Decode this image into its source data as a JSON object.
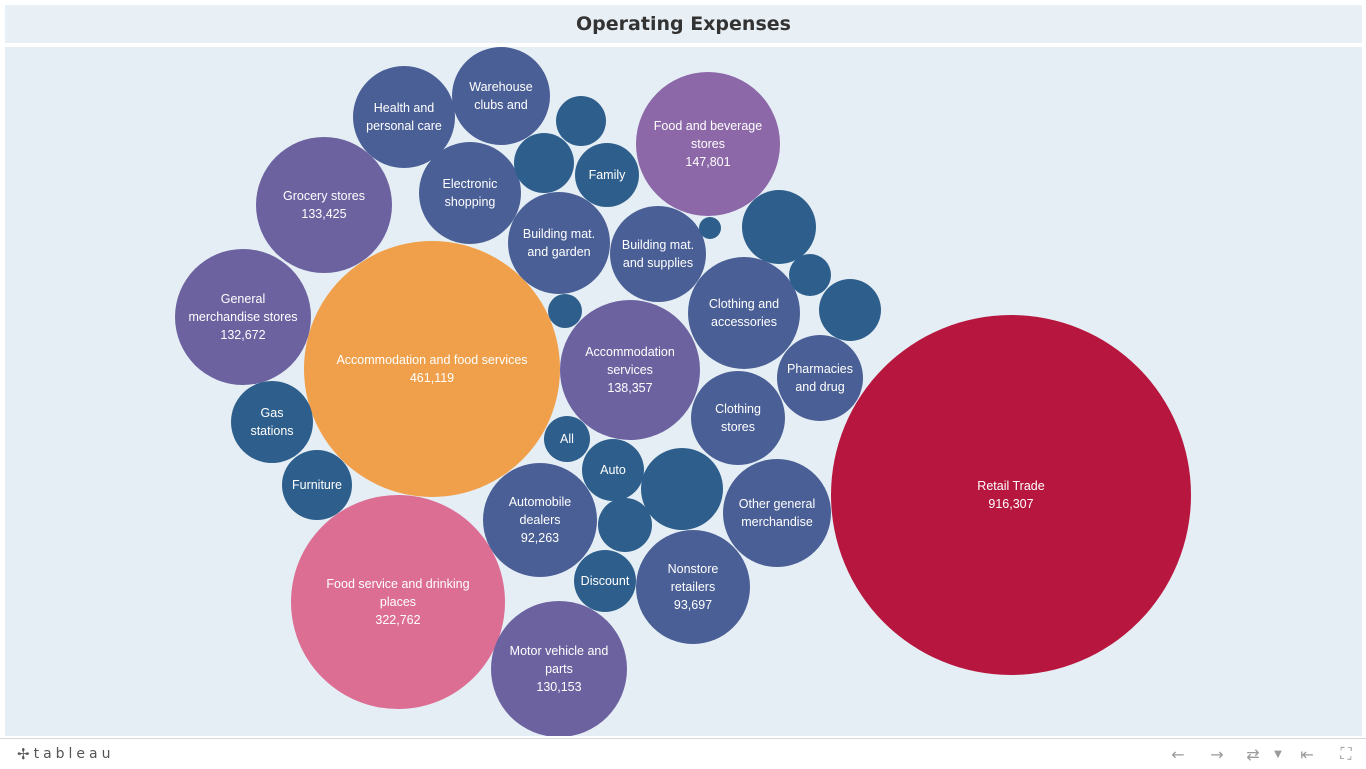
{
  "title": "Operating Expenses",
  "colors": {
    "blue_dark": "#2e5f8c",
    "blue_slate": "#4a5f96",
    "purple": "#6c62a0",
    "purple_light": "#8c68a8",
    "orange": "#f0a04a",
    "pink": "#dc6e94",
    "crimson": "#b7173f",
    "background": "#e6eef5"
  },
  "chart_data": {
    "type": "bubble",
    "title": "Operating Expenses",
    "value_format": "thousands separator",
    "bubbles": [
      {
        "label": [
          "Retail Trade"
        ],
        "value": 916307,
        "value_label": "916,307",
        "color": "crimson"
      },
      {
        "label": [
          "Accommodation and food services"
        ],
        "value": 461119,
        "value_label": "461,119",
        "color": "orange"
      },
      {
        "label": [
          "Food service and drinking",
          "places"
        ],
        "value": 322762,
        "value_label": "322,762",
        "color": "pink"
      },
      {
        "label": [
          "Food and beverage",
          "stores"
        ],
        "value": 147801,
        "value_label": "147,801",
        "color": "purple_light"
      },
      {
        "label": [
          "Accommodation",
          "services"
        ],
        "value": 138357,
        "value_label": "138,357",
        "color": "purple"
      },
      {
        "label": [
          "Grocery stores"
        ],
        "value": 133425,
        "value_label": "133,425",
        "color": "purple"
      },
      {
        "label": [
          "General",
          "merchandise stores"
        ],
        "value": 132672,
        "value_label": "132,672",
        "color": "purple"
      },
      {
        "label": [
          "Motor vehicle and",
          "parts"
        ],
        "value": 130153,
        "value_label": "130,153",
        "color": "purple"
      },
      {
        "label": [
          "Nonstore",
          "retailers"
        ],
        "value": 93697,
        "value_label": "93,697",
        "color": "blue_slate"
      },
      {
        "label": [
          "Automobile",
          "dealers"
        ],
        "value": 92263,
        "value_label": "92,263",
        "color": "blue_slate"
      },
      {
        "label": [
          "Other general",
          "merchandise"
        ],
        "value": null,
        "value_label": "",
        "color": "blue_slate"
      },
      {
        "label": [
          "Clothing and",
          "accessories"
        ],
        "value": null,
        "value_label": "",
        "color": "blue_slate"
      },
      {
        "label": [
          "Building mat.",
          "and garden"
        ],
        "value": null,
        "value_label": "",
        "color": "blue_slate"
      },
      {
        "label": [
          "Building mat.",
          "and supplies"
        ],
        "value": null,
        "value_label": "",
        "color": "blue_slate"
      },
      {
        "label": [
          "Health and",
          "personal care"
        ],
        "value": null,
        "value_label": "",
        "color": "blue_slate"
      },
      {
        "label": [
          "Electronic",
          "shopping"
        ],
        "value": null,
        "value_label": "",
        "color": "blue_slate"
      },
      {
        "label": [
          "Warehouse",
          "clubs and"
        ],
        "value": null,
        "value_label": "",
        "color": "blue_slate"
      },
      {
        "label": [
          "Clothing",
          "stores"
        ],
        "value": null,
        "value_label": "",
        "color": "blue_slate"
      },
      {
        "label": [
          "Pharmacies",
          "and drug"
        ],
        "value": null,
        "value_label": "",
        "color": "blue_slate"
      },
      {
        "label": [
          "Gas",
          "stations"
        ],
        "value": null,
        "value_label": "",
        "color": "blue_dark"
      },
      {
        "label": [
          "Furniture"
        ],
        "value": null,
        "value_label": "",
        "color": "blue_dark"
      },
      {
        "label": [
          "Discount"
        ],
        "value": null,
        "value_label": "",
        "color": "blue_dark"
      },
      {
        "label": [
          "Auto"
        ],
        "value": null,
        "value_label": "",
        "color": "blue_dark"
      },
      {
        "label": [
          "Family"
        ],
        "value": null,
        "value_label": "",
        "color": "blue_dark"
      },
      {
        "label": [
          "All"
        ],
        "value": null,
        "value_label": "",
        "color": "blue_dark"
      },
      {
        "label": [],
        "value": null,
        "value_label": "",
        "color": "blue_dark"
      },
      {
        "label": [],
        "value": null,
        "value_label": "",
        "color": "blue_dark"
      },
      {
        "label": [],
        "value": null,
        "value_label": "",
        "color": "blue_dark"
      },
      {
        "label": [],
        "value": null,
        "value_label": "",
        "color": "blue_dark"
      },
      {
        "label": [],
        "value": null,
        "value_label": "",
        "color": "blue_dark"
      },
      {
        "label": [],
        "value": null,
        "value_label": "",
        "color": "blue_dark"
      },
      {
        "label": [],
        "value": null,
        "value_label": "",
        "color": "blue_dark"
      },
      {
        "label": [],
        "value": null,
        "value_label": "",
        "color": "blue_dark"
      },
      {
        "label": [],
        "value": null,
        "value_label": "",
        "color": "blue_dark"
      }
    ]
  },
  "footer": {
    "logo_text": "tableau",
    "icons": [
      "undo-icon",
      "redo-icon",
      "revert-icon",
      "dropdown-icon",
      "reset-icon",
      "fullscreen-icon"
    ]
  }
}
